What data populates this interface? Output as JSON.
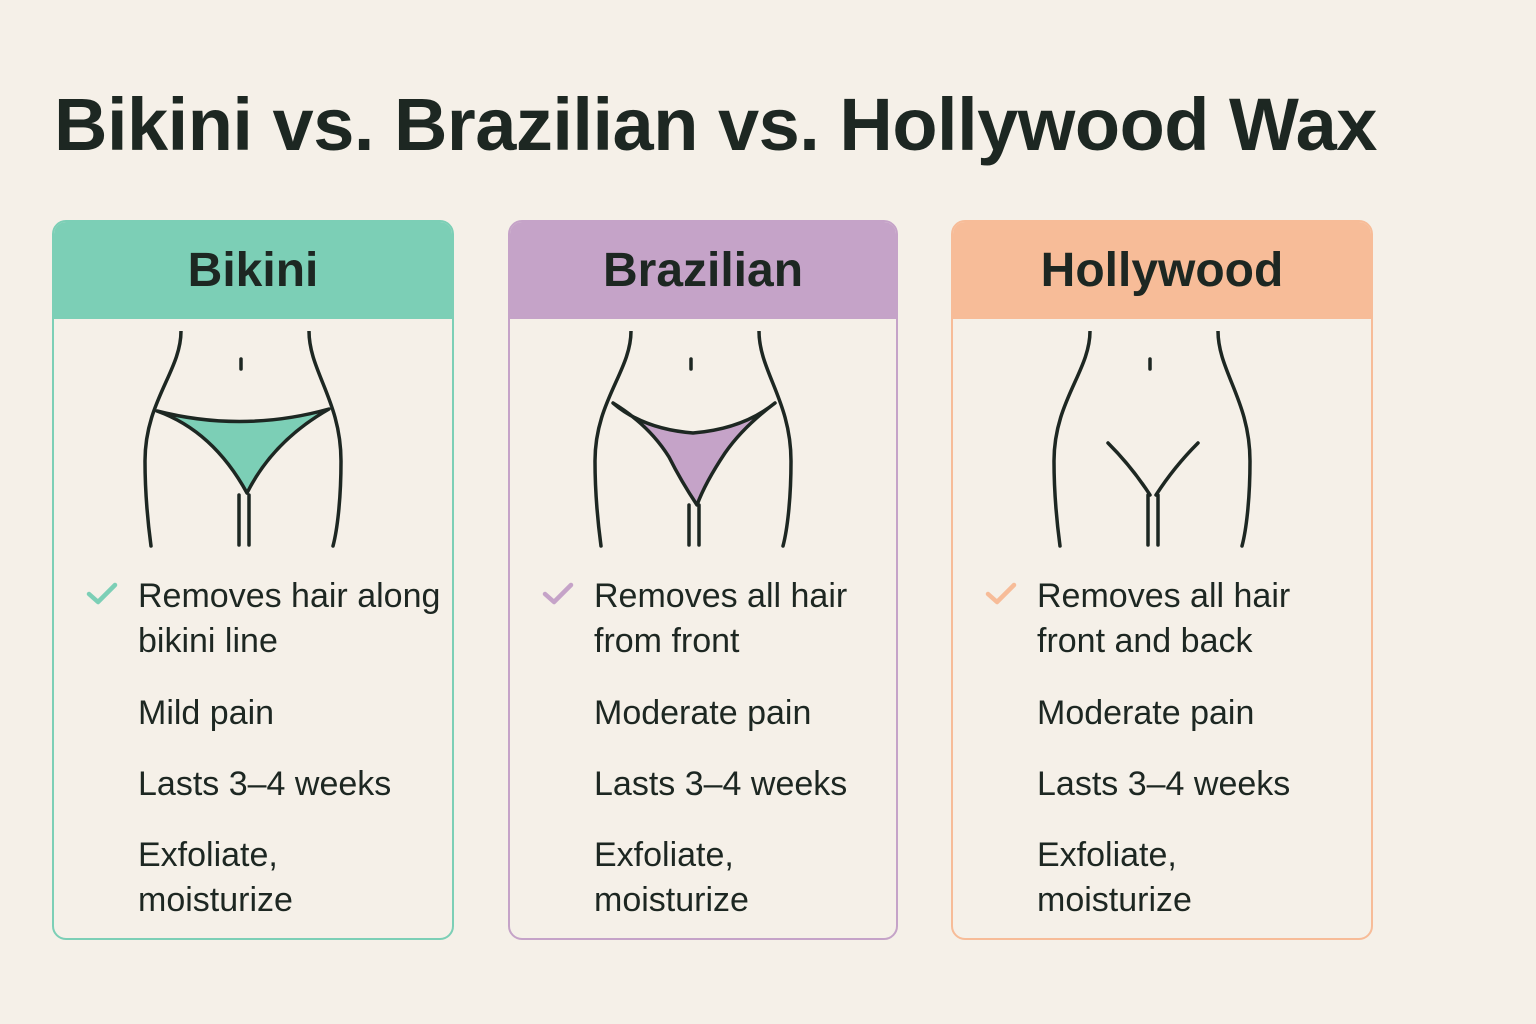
{
  "title": "Bikini vs. Brazilian vs. Hollywood Wax",
  "cards": [
    {
      "name": "Bikini",
      "color": "#7ccfb6",
      "items": [
        "Removes hair along bikini line",
        "Mild pain",
        "Lasts 3–4 weeks",
        "Exfoliate, moisturize"
      ]
    },
    {
      "name": "Brazilian",
      "color": "#c5a3c8",
      "items": [
        "Removes all hair from front",
        "Moderate pain",
        "Lasts 3–4 weeks",
        "Exfoliate, moisturize"
      ]
    },
    {
      "name": "Hollywood",
      "color": "#f7bc98",
      "items": [
        "Removes all hair front and back",
        "Moderate pain",
        "Lasts 3–4 weeks",
        "Exfoliate, moisturize"
      ]
    }
  ],
  "icons": [
    "check-icon"
  ]
}
